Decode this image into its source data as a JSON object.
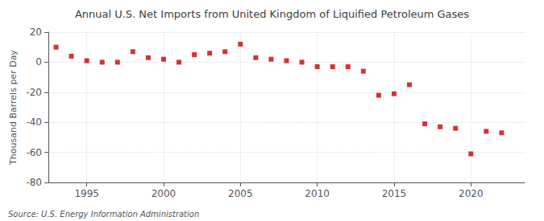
{
  "chart_data": {
    "type": "scatter",
    "title": "Annual U.S. Net Imports from United Kingdom of Liquified Petroleum Gases",
    "ylabel": "Thousand Barrels per Day",
    "annotations": [
      "Source: U.S. Energy Information Administration"
    ],
    "x": [
      1993,
      1994,
      1995,
      1996,
      1997,
      1998,
      1999,
      2000,
      2001,
      2002,
      2003,
      2004,
      2005,
      2006,
      2007,
      2008,
      2009,
      2010,
      2011,
      2012,
      2013,
      2014,
      2015,
      2016,
      2017,
      2018,
      2019,
      2020,
      2021,
      2022
    ],
    "values": [
      10,
      4,
      1,
      0,
      0,
      7,
      3,
      2,
      0,
      5,
      6,
      7,
      12,
      3,
      2,
      1,
      0,
      -3,
      -3,
      -3,
      -6,
      -22,
      -21,
      -15,
      -41,
      -43,
      -44,
      -61,
      -46,
      -47
    ],
    "color": "#CC0000",
    "marker": "square",
    "xlim": [
      1992.5,
      2023.5
    ],
    "xticks": [
      1995,
      2000,
      2005,
      2010,
      2015,
      2020
    ],
    "ylim": [
      -80,
      20
    ],
    "yticks": [
      -80,
      -60,
      -40,
      -20,
      0,
      20
    ],
    "grid": true
  }
}
